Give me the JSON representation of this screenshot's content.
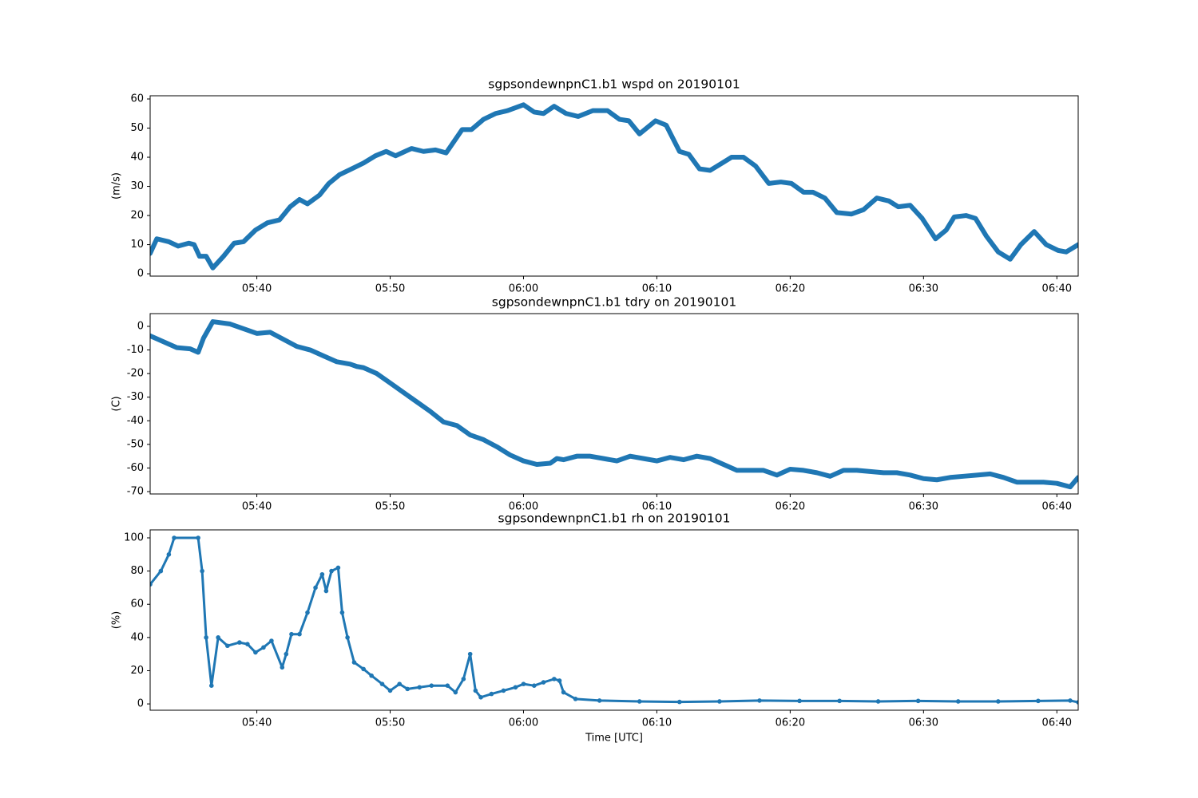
{
  "chart_data": [
    {
      "type": "line",
      "title": "sgpsondewnpnC1.b1 wspd on 20190101",
      "ylabel": "(m/s)",
      "color": "#1f77b4",
      "x": [
        332.0,
        332.5,
        333.4,
        334.1,
        334.9,
        335.3,
        335.7,
        336.2,
        336.7,
        337.5,
        338.3,
        339.0,
        339.9,
        340.8,
        341.7,
        342.5,
        343.2,
        343.8,
        344.7,
        345.4,
        346.2,
        347.1,
        348.0,
        348.9,
        349.7,
        350.4,
        351.6,
        352.5,
        353.4,
        354.2,
        355.4,
        356.1,
        357.0,
        357.9,
        358.8,
        360.0,
        360.8,
        361.5,
        362.3,
        363.2,
        364.1,
        365.2,
        366.3,
        367.2,
        367.9,
        368.7,
        369.9,
        370.7,
        371.7,
        372.4,
        373.2,
        374.0,
        374.9,
        375.6,
        376.5,
        377.4,
        378.4,
        379.3,
        380.1,
        381.0,
        381.7,
        382.6,
        383.5,
        384.6,
        385.5,
        386.5,
        387.4,
        388.1,
        389.0,
        389.9,
        390.9,
        391.7,
        392.3,
        393.2,
        393.9,
        394.7,
        395.6,
        396.5,
        397.3,
        398.3,
        399.2,
        400.1,
        400.7,
        401.6
      ],
      "values": [
        7,
        12,
        11,
        9.5,
        10.5,
        10,
        6,
        6,
        2,
        6,
        10.5,
        11,
        15,
        17.5,
        18.5,
        23,
        25.5,
        24,
        27,
        31,
        34,
        36,
        38,
        40.5,
        42,
        40.5,
        43,
        42,
        42.5,
        41.5,
        49.5,
        49.5,
        53,
        55,
        56,
        58,
        55.5,
        55,
        57.5,
        55,
        54,
        56,
        56,
        53,
        52.5,
        48,
        52.5,
        51,
        42,
        41,
        36,
        35.5,
        38,
        40,
        40,
        37,
        31,
        31.5,
        31,
        28,
        28,
        26,
        21,
        20.5,
        22,
        26,
        25,
        23,
        23.5,
        19,
        12,
        15,
        19.5,
        20,
        19,
        13,
        7.5,
        5,
        10,
        14.5,
        10,
        8,
        7.5,
        10
      ],
      "xlim": [
        332.0,
        401.6
      ],
      "ylim": [
        -0.8,
        61.1
      ],
      "xticks": [
        {
          "value": 340,
          "label": "05:40"
        },
        {
          "value": 350,
          "label": "05:50"
        },
        {
          "value": 360,
          "label": "06:00"
        },
        {
          "value": 370,
          "label": "06:10"
        },
        {
          "value": 380,
          "label": "06:20"
        },
        {
          "value": 390,
          "label": "06:30"
        },
        {
          "value": 400,
          "label": "06:40"
        }
      ],
      "yticks": [
        0,
        10,
        20,
        30,
        40,
        50,
        60
      ]
    },
    {
      "type": "line",
      "title": "sgpsondewnpnC1.b1 tdry on 20190101",
      "ylabel": "(C)",
      "color": "#1f77b4",
      "x": [
        332.0,
        333,
        334,
        335,
        335.6,
        336,
        336.7,
        338,
        339,
        340,
        341,
        342,
        343,
        344,
        345,
        346,
        347,
        347.5,
        348,
        349,
        350,
        351,
        352,
        353,
        354,
        355,
        356,
        357,
        358,
        359,
        360,
        361,
        362,
        362.5,
        363,
        364,
        365,
        366,
        367,
        368,
        369,
        370,
        371,
        372,
        373,
        374,
        375,
        376,
        377,
        378,
        379,
        380,
        381,
        382,
        383,
        384,
        385,
        386,
        387,
        388,
        389,
        390,
        391,
        392,
        393,
        394,
        395,
        396,
        397,
        398,
        399,
        400,
        401,
        401.6
      ],
      "values": [
        -4,
        -6.5,
        -9,
        -9.5,
        -11,
        -5,
        2,
        1,
        -1,
        -3,
        -2.5,
        -5.5,
        -8.5,
        -10,
        -12.5,
        -15,
        -16,
        -17,
        -17.5,
        -20,
        -24,
        -28,
        -32,
        -36,
        -40.5,
        -42,
        -46,
        -48,
        -51,
        -54.5,
        -57,
        -58.5,
        -58,
        -56,
        -56.5,
        -55,
        -55,
        -56,
        -57,
        -55,
        -56,
        -57,
        -55.5,
        -56.5,
        -55,
        -56,
        -58.5,
        -61,
        -61,
        -61,
        -63,
        -60.5,
        -61,
        -62,
        -63.5,
        -61,
        -61,
        -61.5,
        -62,
        -62,
        -63,
        -64.5,
        -65,
        -64,
        -63.5,
        -63,
        -62.5,
        -64,
        -66,
        -66,
        -66,
        -66.5,
        -68,
        -64
      ],
      "xlim": [
        332.0,
        401.6
      ],
      "ylim": [
        -71,
        5.4
      ],
      "xticks": [
        {
          "value": 340,
          "label": "05:40"
        },
        {
          "value": 350,
          "label": "05:50"
        },
        {
          "value": 360,
          "label": "06:00"
        },
        {
          "value": 370,
          "label": "06:10"
        },
        {
          "value": 380,
          "label": "06:20"
        },
        {
          "value": 390,
          "label": "06:30"
        },
        {
          "value": 400,
          "label": "06:40"
        }
      ],
      "yticks": [
        -70,
        -60,
        -50,
        -40,
        -30,
        -20,
        -10,
        0
      ]
    },
    {
      "type": "line",
      "title": "sgpsondewnpnC1.b1 rh on 20190101",
      "ylabel": "(%)",
      "xlabel": "Time [UTC]",
      "color": "#1f77b4",
      "marker": "o",
      "x": [
        332.0,
        332.8,
        333.4,
        333.8,
        335.6,
        335.9,
        336.2,
        336.6,
        337.1,
        337.8,
        338.7,
        339.3,
        339.9,
        340.5,
        341.1,
        341.9,
        342.2,
        342.6,
        343.2,
        343.8,
        344.4,
        344.9,
        345.2,
        345.6,
        346.1,
        346.4,
        346.8,
        347.3,
        348.0,
        348.6,
        349.4,
        350.0,
        350.7,
        351.3,
        352.2,
        353.1,
        354.3,
        354.9,
        355.5,
        356.0,
        356.4,
        356.8,
        357.6,
        358.5,
        359.4,
        360.0,
        360.8,
        361.5,
        362.3,
        362.7,
        363.0,
        363.9,
        365.7,
        368.7,
        371.7,
        374.7,
        377.7,
        380.7,
        383.7,
        386.6,
        389.6,
        392.6,
        395.6,
        398.6,
        401.0,
        401.6
      ],
      "values": [
        72,
        80,
        90,
        100,
        100,
        80,
        40,
        11,
        40,
        35,
        37,
        36,
        31,
        34,
        38,
        22,
        30,
        42,
        42,
        55,
        70,
        78,
        68,
        80,
        82,
        55,
        40,
        25,
        21,
        17,
        12,
        8,
        12,
        9,
        10,
        11,
        11,
        7,
        15,
        30,
        8,
        4,
        6,
        8,
        10,
        12,
        11,
        13,
        15,
        14,
        7,
        3,
        2,
        1.5,
        1.2,
        1.5,
        2,
        1.8,
        1.8,
        1.5,
        1.8,
        1.5,
        1.5,
        1.8,
        2,
        1
      ],
      "xlim": [
        332.0,
        401.6
      ],
      "ylim": [
        -3.8,
        104.8
      ],
      "xticks": [
        {
          "value": 340,
          "label": "05:40"
        },
        {
          "value": 350,
          "label": "05:50"
        },
        {
          "value": 360,
          "label": "06:00"
        },
        {
          "value": 370,
          "label": "06:10"
        },
        {
          "value": 380,
          "label": "06:20"
        },
        {
          "value": 390,
          "label": "06:30"
        },
        {
          "value": 400,
          "label": "06:40"
        }
      ],
      "yticks": [
        0,
        20,
        40,
        60,
        80,
        100
      ]
    }
  ]
}
